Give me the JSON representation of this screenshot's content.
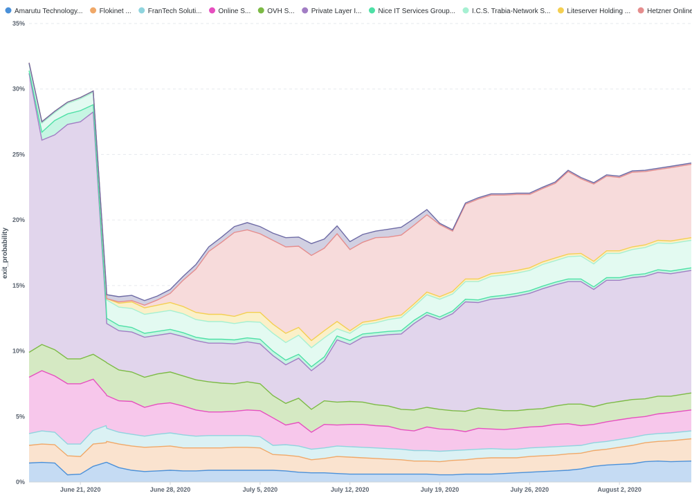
{
  "chart_data": {
    "type": "area",
    "stacked": true,
    "title": "",
    "xlabel": "",
    "ylabel": "exit_probability",
    "ylim": [
      0,
      35
    ],
    "yticks": [
      "0%",
      "5%",
      "10%",
      "15%",
      "20%",
      "25%",
      "30%",
      "35%"
    ],
    "ytick_values": [
      0,
      5,
      10,
      15,
      20,
      25,
      30,
      35
    ],
    "x_start": "June 17, 2020",
    "x_end": "August 8, 2020",
    "xticks": [
      "June 21, 2020",
      "June 28, 2020",
      "July 5, 2020",
      "July 12, 2020",
      "July 19, 2020",
      "July 26, 2020",
      "August 2, 2020"
    ],
    "xtick_day_offsets": [
      4,
      11,
      18,
      25,
      32,
      39,
      46
    ],
    "legend_position": "top",
    "day_offsets": [
      0,
      1,
      2,
      3,
      4,
      5,
      6,
      6.05,
      7,
      8,
      9,
      10,
      11,
      12,
      13,
      14,
      15,
      16,
      17,
      18,
      19,
      20,
      21,
      22,
      23,
      24,
      25,
      26,
      27,
      28,
      29,
      30,
      31,
      32,
      33,
      34,
      35,
      36,
      37,
      38,
      39,
      40,
      41,
      42,
      43,
      44,
      45,
      46,
      47,
      48,
      49,
      50,
      51.6
    ],
    "series": [
      {
        "name": "Amarutu Technology...",
        "color": "#4a90d9",
        "values": [
          1.45,
          1.5,
          1.45,
          0.55,
          0.6,
          1.2,
          1.5,
          1.5,
          1.1,
          0.9,
          0.8,
          0.85,
          0.9,
          0.85,
          0.85,
          0.9,
          0.9,
          0.9,
          0.9,
          0.9,
          0.9,
          0.85,
          0.75,
          0.7,
          0.7,
          0.65,
          0.6,
          0.6,
          0.6,
          0.6,
          0.6,
          0.6,
          0.6,
          0.55,
          0.55,
          0.6,
          0.6,
          0.6,
          0.65,
          0.7,
          0.75,
          0.8,
          0.85,
          0.9,
          1.0,
          1.2,
          1.3,
          1.35,
          1.4,
          1.55,
          1.6,
          1.55,
          1.6
        ]
      },
      {
        "name": "Flokinet ...",
        "color": "#f0a868",
        "values": [
          1.35,
          1.4,
          1.4,
          1.45,
          1.35,
          1.7,
          1.5,
          1.6,
          1.8,
          1.85,
          1.85,
          1.85,
          1.85,
          1.75,
          1.75,
          1.7,
          1.7,
          1.75,
          1.75,
          1.7,
          1.2,
          1.2,
          1.2,
          1.0,
          1.1,
          1.3,
          1.3,
          1.25,
          1.2,
          1.15,
          1.1,
          1.0,
          1.0,
          1.0,
          1.1,
          1.1,
          1.2,
          1.25,
          1.2,
          1.15,
          1.2,
          1.2,
          1.2,
          1.25,
          1.2,
          1.2,
          1.2,
          1.3,
          1.4,
          1.45,
          1.5,
          1.6,
          1.7
        ]
      },
      {
        "name": "FranTech Soluti...",
        "color": "#8fd4de",
        "values": [
          0.9,
          1.0,
          0.95,
          0.9,
          0.95,
          1.05,
          1.3,
          1.0,
          0.9,
          0.9,
          0.85,
          0.95,
          1.0,
          1.0,
          0.9,
          0.95,
          0.95,
          0.9,
          0.9,
          0.85,
          0.7,
          0.8,
          0.8,
          0.8,
          0.8,
          0.8,
          0.8,
          0.8,
          0.8,
          0.8,
          0.8,
          0.8,
          0.8,
          0.8,
          0.75,
          0.75,
          0.7,
          0.7,
          0.65,
          0.65,
          0.65,
          0.65,
          0.65,
          0.6,
          0.6,
          0.6,
          0.6,
          0.6,
          0.6,
          0.6,
          0.6,
          0.6,
          0.6
        ]
      },
      {
        "name": "Online S...",
        "color": "#e64fbf",
        "values": [
          4.3,
          4.6,
          4.3,
          4.6,
          4.6,
          3.9,
          2.4,
          2.5,
          2.4,
          2.5,
          2.2,
          2.3,
          2.3,
          2.2,
          2.0,
          1.8,
          1.8,
          1.85,
          1.95,
          2.0,
          2.1,
          1.5,
          1.8,
          1.3,
          1.8,
          1.6,
          1.7,
          1.75,
          1.7,
          1.7,
          1.5,
          1.5,
          1.8,
          1.7,
          1.6,
          1.4,
          1.6,
          1.5,
          1.5,
          1.6,
          1.6,
          1.6,
          1.7,
          1.7,
          1.5,
          1.4,
          1.5,
          1.5,
          1.5,
          1.4,
          1.5,
          1.55,
          1.6
        ]
      },
      {
        "name": "OVH S...",
        "color": "#7cba45",
        "values": [
          1.9,
          2.0,
          2.0,
          1.9,
          1.9,
          1.9,
          2.45,
          2.5,
          2.35,
          2.25,
          2.3,
          2.3,
          2.35,
          2.3,
          2.3,
          2.3,
          2.2,
          2.1,
          2.15,
          2.05,
          1.7,
          1.65,
          1.85,
          1.75,
          1.8,
          1.75,
          1.75,
          1.7,
          1.6,
          1.55,
          1.55,
          1.6,
          1.5,
          1.5,
          1.45,
          1.55,
          1.55,
          1.5,
          1.45,
          1.35,
          1.35,
          1.35,
          1.4,
          1.5,
          1.65,
          1.35,
          1.4,
          1.4,
          1.4,
          1.35,
          1.35,
          1.25,
          1.3
        ]
      },
      {
        "name": "Private Layer I...",
        "color": "#a27dc4",
        "values": [
          21.3,
          15.6,
          16.4,
          17.9,
          18.1,
          18.5,
          4.0,
          3.0,
          3.0,
          3.05,
          3.05,
          2.95,
          2.95,
          3.0,
          3.0,
          2.95,
          3.05,
          3.05,
          3.05,
          3.05,
          3.05,
          2.95,
          3.05,
          2.95,
          3.05,
          4.75,
          4.35,
          4.95,
          5.25,
          5.45,
          5.75,
          6.6,
          7.05,
          6.85,
          7.4,
          8.35,
          8.05,
          8.4,
          8.6,
          8.75,
          8.85,
          9.15,
          9.25,
          9.35,
          9.35,
          8.95,
          9.4,
          9.25,
          9.3,
          9.35,
          9.45,
          9.35,
          9.35
        ]
      },
      {
        "name": "Nice IT Services Group...",
        "color": "#4ee0a6",
        "values": [
          0.2,
          0.6,
          1.1,
          0.8,
          0.85,
          0.55,
          0.4,
          0.4,
          0.4,
          0.35,
          0.3,
          0.3,
          0.3,
          0.3,
          0.25,
          0.3,
          0.3,
          0.3,
          0.3,
          0.35,
          0.35,
          0.35,
          0.3,
          0.3,
          0.3,
          0.3,
          0.3,
          0.25,
          0.25,
          0.25,
          0.25,
          0.25,
          0.2,
          0.2,
          0.2,
          0.2,
          0.2,
          0.2,
          0.2,
          0.2,
          0.2,
          0.2,
          0.2,
          0.2,
          0.2,
          0.2,
          0.2,
          0.2,
          0.2,
          0.2,
          0.2,
          0.2,
          0.2
        ]
      },
      {
        "name": "I.C.S. Trabia-Network S...",
        "color": "#a6f0d2",
        "values": [
          0.5,
          0.7,
          0.6,
          0.8,
          0.9,
          0.95,
          1.3,
          1.4,
          1.4,
          1.45,
          1.45,
          1.45,
          1.45,
          1.45,
          1.35,
          1.35,
          1.35,
          1.25,
          1.25,
          1.3,
          1.35,
          1.35,
          1.45,
          1.45,
          1.45,
          0.55,
          0.55,
          0.7,
          0.75,
          0.9,
          1.0,
          1.05,
          1.35,
          1.35,
          1.3,
          1.35,
          1.4,
          1.55,
          1.55,
          1.55,
          1.55,
          1.65,
          1.65,
          1.7,
          1.75,
          1.75,
          1.85,
          1.85,
          1.95,
          2.0,
          2.05,
          2.1,
          2.1
        ]
      },
      {
        "name": "Liteserver Holding ...",
        "color": "#f4cf52",
        "values": [
          0.1,
          0.1,
          0.1,
          0.1,
          0.1,
          0.1,
          0.1,
          0.1,
          0.3,
          0.5,
          0.5,
          0.55,
          0.6,
          0.55,
          0.55,
          0.55,
          0.55,
          0.55,
          0.7,
          0.75,
          0.7,
          0.7,
          0.6,
          0.55,
          0.55,
          0.55,
          0.2,
          0.2,
          0.2,
          0.2,
          0.2,
          0.2,
          0.2,
          0.2,
          0.2,
          0.2,
          0.2,
          0.2,
          0.2,
          0.2,
          0.2,
          0.2,
          0.2,
          0.2,
          0.2,
          0.2,
          0.2,
          0.2,
          0.2,
          0.2,
          0.2,
          0.2,
          0.2
        ]
      },
      {
        "name": "Hetzner Online G...",
        "color": "#e58d8d",
        "values": [
          0.0,
          0.0,
          0.0,
          0.0,
          0.0,
          0.0,
          0.0,
          0.0,
          0.1,
          0.1,
          0.2,
          0.4,
          0.7,
          2.0,
          3.3,
          4.8,
          5.5,
          6.4,
          6.3,
          6.0,
          6.4,
          6.6,
          6.2,
          6.5,
          6.3,
          6.7,
          6.2,
          6.1,
          6.3,
          6.1,
          6.1,
          6.0,
          5.9,
          5.5,
          4.6,
          5.7,
          6.1,
          6.0,
          5.9,
          5.8,
          5.6,
          5.6,
          5.7,
          6.3,
          5.7,
          5.9,
          5.7,
          5.6,
          5.7,
          5.6,
          5.4,
          5.6,
          5.6
        ]
      },
      {
        "name": "Hetzner Online G...",
        "color": "#6e6ba5",
        "values": [
          0.0,
          0.0,
          0.0,
          0.0,
          0.0,
          0.0,
          0.2,
          0.3,
          0.4,
          0.4,
          0.35,
          0.3,
          0.3,
          0.3,
          0.35,
          0.35,
          0.4,
          0.45,
          0.55,
          0.55,
          0.55,
          0.7,
          0.7,
          0.9,
          0.7,
          0.6,
          0.6,
          0.6,
          0.5,
          0.6,
          0.6,
          0.5,
          0.4,
          0.1,
          0.1,
          0.1,
          0.1,
          0.1,
          0.1,
          0.1,
          0.1,
          0.1,
          0.1,
          0.1,
          0.1,
          0.1,
          0.1,
          0.1,
          0.1,
          0.1,
          0.1,
          0.1,
          0.1
        ]
      }
    ]
  }
}
